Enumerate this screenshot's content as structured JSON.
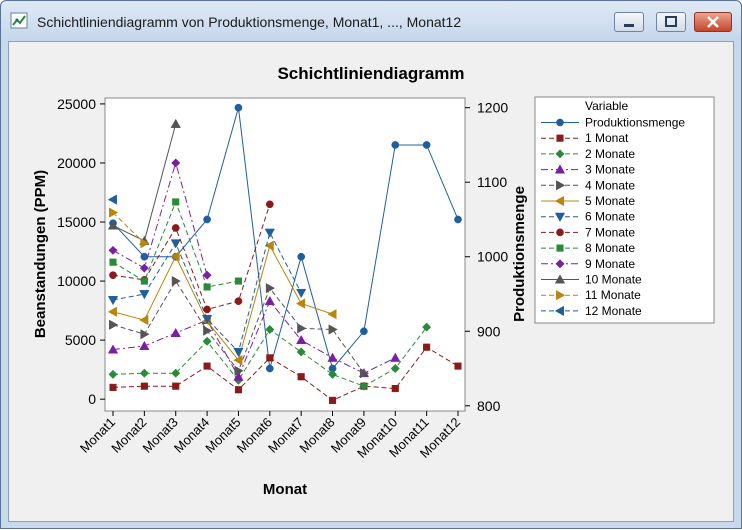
{
  "window": {
    "title": "Schichtliniendiagramm von Produktionsmenge, Monat1, ..., Monat12",
    "icons": [
      "minimize-icon",
      "maximize-icon",
      "close-icon"
    ]
  },
  "chart_data": {
    "type": "line",
    "title": "Schichtliniendiagramm",
    "xlabel": "Monat",
    "ylabel": "Beanstandungen (PPM)",
    "y2label": "Produktionsmenge",
    "categories": [
      "Monat1",
      "Monat2",
      "Monat3",
      "Monat4",
      "Monat5",
      "Monat6",
      "Monat7",
      "Monat8",
      "Monat9",
      "Monat10",
      "Monat11",
      "Monat12"
    ],
    "ylim": [
      -1000,
      25500
    ],
    "y2lim": [
      793,
      1213
    ],
    "yticks": [
      0,
      5000,
      10000,
      15000,
      20000,
      25000
    ],
    "y2ticks": [
      800,
      900,
      1000,
      1100,
      1200
    ],
    "grid": false,
    "legend": {
      "title": "Variable",
      "position": "right"
    },
    "series": [
      {
        "name": "Produktionsmenge",
        "axis": "right",
        "color": "#1f5f9e",
        "marker": "circle",
        "dash": "solid",
        "values": [
          1045,
          1000,
          1000,
          1050,
          1200,
          850,
          1000,
          850,
          900,
          1150,
          1150,
          1050
        ]
      },
      {
        "name": "1 Monat",
        "axis": "left",
        "color": "#8b1a1a",
        "marker": "square",
        "dash": "dashed",
        "values": [
          1000,
          1100,
          1100,
          2800,
          800,
          3500,
          1900,
          -100,
          1100,
          900,
          4400,
          2800
        ]
      },
      {
        "name": "2 Monate",
        "axis": "left",
        "color": "#2b8a3a",
        "marker": "diamond",
        "dash": "dashed",
        "values": [
          2100,
          2200,
          2200,
          4900,
          1600,
          5900,
          4000,
          2100,
          1100,
          2600,
          6100,
          null
        ]
      },
      {
        "name": "3 Monate",
        "axis": "left",
        "color": "#7b1fa2",
        "marker": "triangle",
        "dash": "dashdot",
        "values": [
          4200,
          4500,
          5600,
          6700,
          1900,
          8300,
          5000,
          3500,
          2200,
          3500,
          null,
          null
        ]
      },
      {
        "name": "4 Monate",
        "axis": "left",
        "color": "#555555",
        "marker": "tri-right",
        "dash": "dashed",
        "values": [
          6300,
          5500,
          10000,
          5800,
          2400,
          9400,
          6000,
          5900,
          2200,
          null,
          null,
          null
        ]
      },
      {
        "name": "5 Monate",
        "axis": "left",
        "color": "#b8860b",
        "marker": "tri-left",
        "dash": "solid",
        "values": [
          7400,
          6700,
          12100,
          6600,
          3300,
          13000,
          8100,
          7200,
          null,
          null,
          null,
          null
        ]
      },
      {
        "name": "6 Monate",
        "axis": "left",
        "color": "#1f5f9e",
        "marker": "tri-down",
        "dash": "dashed",
        "values": [
          8400,
          8900,
          13200,
          6800,
          4000,
          14100,
          9000,
          null,
          null,
          null,
          null,
          null
        ]
      },
      {
        "name": "7 Monate",
        "axis": "left",
        "color": "#8b1a1a",
        "marker": "circle",
        "dash": "dashed",
        "values": [
          10500,
          10100,
          14500,
          7600,
          8300,
          16500,
          null,
          null,
          null,
          null,
          null,
          null
        ]
      },
      {
        "name": "8 Monate",
        "axis": "left",
        "color": "#2b8a3a",
        "marker": "square",
        "dash": "dashed",
        "values": [
          11600,
          10000,
          16700,
          9500,
          10000,
          null,
          null,
          null,
          null,
          null,
          null,
          null
        ]
      },
      {
        "name": "9 Monate",
        "axis": "left",
        "color": "#7b1fa2",
        "marker": "diamond",
        "dash": "dashdot",
        "values": [
          12600,
          11100,
          20000,
          10500,
          null,
          null,
          null,
          null,
          null,
          null,
          null,
          null
        ]
      },
      {
        "name": "10 Monate",
        "axis": "left",
        "color": "#555555",
        "marker": "triangle",
        "dash": "solid",
        "values": [
          14700,
          13400,
          23300,
          null,
          null,
          null,
          null,
          null,
          null,
          null,
          null,
          null
        ]
      },
      {
        "name": "11 Monate",
        "axis": "left",
        "color": "#b8860b",
        "marker": "tri-right",
        "dash": "dashed",
        "values": [
          15800,
          13200,
          null,
          null,
          null,
          null,
          null,
          null,
          null,
          null,
          null,
          null
        ]
      },
      {
        "name": "12 Monate",
        "axis": "left",
        "color": "#1f5f9e",
        "marker": "tri-left",
        "dash": "dashed",
        "values": [
          16900,
          null,
          null,
          null,
          null,
          null,
          null,
          null,
          null,
          null,
          null,
          null
        ]
      }
    ]
  }
}
